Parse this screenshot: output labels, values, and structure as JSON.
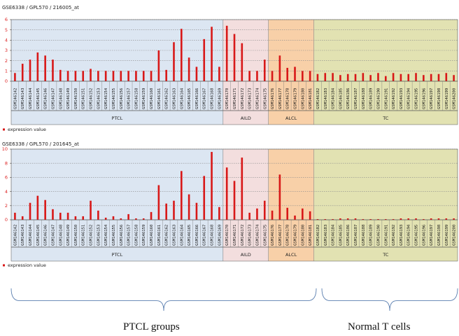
{
  "samples": [
    "GSM146142",
    "GSM146143",
    "GSM146144",
    "GSM146145",
    "GSM146146",
    "GSM146147",
    "GSM146148",
    "GSM146149",
    "GSM146150",
    "GSM146151",
    "GSM146152",
    "GSM146153",
    "GSM146154",
    "GSM146155",
    "GSM146156",
    "GSM146157",
    "GSM146158",
    "GSM146159",
    "GSM146160",
    "GSM146161",
    "GSM146162",
    "GSM146163",
    "GSM146164",
    "GSM146165",
    "GSM146166",
    "GSM146167",
    "GSM146168",
    "GSM146169",
    "GSM146170",
    "GSM146171",
    "GSM146172",
    "GSM146173",
    "GSM146174",
    "GSM146175",
    "GSM146176",
    "GSM146177",
    "GSM146178",
    "GSM146179",
    "GSM146180",
    "GSM146181",
    "GSM146182",
    "GSM146183",
    "GSM146184",
    "GSM146185",
    "GSM146186",
    "GSM146187",
    "GSM146188",
    "GSM146189",
    "GSM146190",
    "GSM146191",
    "GSM146192",
    "GSM146193",
    "GSM146194",
    "GSM146195",
    "GSM146196",
    "GSM146197",
    "GSM146198",
    "GSM146199",
    "GSM146200"
  ],
  "chart_data": [
    {
      "type": "bar",
      "title": "GSE6338 / GPL570 / 216005_at",
      "legend": "expression value",
      "legend_position": "bottom-left",
      "grid": true,
      "ylim": [
        0,
        6
      ],
      "yticks": [
        0,
        1,
        2,
        3,
        4,
        5,
        6
      ],
      "groups": [
        {
          "name": "PTCL",
          "start": 0,
          "end": 27,
          "color": "#dce6f2"
        },
        {
          "name": "AILD",
          "start": 28,
          "end": 33,
          "color": "#f3dede"
        },
        {
          "name": "ALCL",
          "start": 34,
          "end": 39,
          "color": "#f8d0a8"
        },
        {
          "name": "TC",
          "start": 40,
          "end": 58,
          "color": "#e2e2b2"
        }
      ],
      "series": [
        {
          "name": "expression value",
          "color": "#d81818",
          "values": [
            0.8,
            1.7,
            2.1,
            2.8,
            2.5,
            2.1,
            1.1,
            1.0,
            1.0,
            1.0,
            1.2,
            1.0,
            1.0,
            1.0,
            1.0,
            1.0,
            1.0,
            1.0,
            1.0,
            3.0,
            1.1,
            3.8,
            5.1,
            2.3,
            1.4,
            4.1,
            5.3,
            1.4,
            5.4,
            4.6,
            3.7,
            1.0,
            1.0,
            2.1,
            1.0,
            2.5,
            1.3,
            1.4,
            1.0,
            1.0,
            0.7,
            0.8,
            0.8,
            0.6,
            0.7,
            0.7,
            0.8,
            0.6,
            0.8,
            0.5,
            0.8,
            0.7,
            0.7,
            0.8,
            0.6,
            0.7,
            0.7,
            0.8,
            0.6
          ]
        }
      ]
    },
    {
      "type": "bar",
      "title": "GSE6338 / GPL570 / 201645_at",
      "legend": "expression value",
      "legend_position": "bottom-left",
      "grid": true,
      "ylim": [
        0,
        10
      ],
      "yticks": [
        0,
        2,
        4,
        6,
        8,
        10
      ],
      "groups": [
        {
          "name": "PTCL",
          "start": 0,
          "end": 27,
          "color": "#dce6f2"
        },
        {
          "name": "AILD",
          "start": 28,
          "end": 33,
          "color": "#f3dede"
        },
        {
          "name": "ALCL",
          "start": 34,
          "end": 39,
          "color": "#f8d0a8"
        },
        {
          "name": "TC",
          "start": 40,
          "end": 58,
          "color": "#e2e2b2"
        }
      ],
      "series": [
        {
          "name": "expression value",
          "color": "#d81818",
          "values": [
            1.0,
            0.5,
            2.4,
            3.4,
            2.8,
            1.5,
            1.0,
            1.0,
            0.5,
            0.5,
            2.7,
            1.3,
            0.3,
            0.5,
            0.2,
            0.8,
            0.2,
            0.2,
            1.1,
            4.9,
            2.3,
            2.7,
            6.9,
            3.6,
            2.4,
            6.2,
            9.6,
            1.8,
            7.4,
            5.5,
            8.8,
            1.0,
            1.6,
            2.7,
            1.3,
            6.4,
            1.7,
            0.6,
            1.6,
            1.2,
            0.1,
            0.1,
            0.1,
            0.2,
            0.2,
            0.2,
            0.1,
            0.1,
            0.1,
            0.1,
            0.1,
            0.2,
            0.2,
            0.2,
            0.1,
            0.2,
            0.2,
            0.2,
            0.2
          ]
        }
      ]
    }
  ],
  "annotations": {
    "ptcl_label": "PTCL groups",
    "normal_label": "Normal T cells"
  }
}
